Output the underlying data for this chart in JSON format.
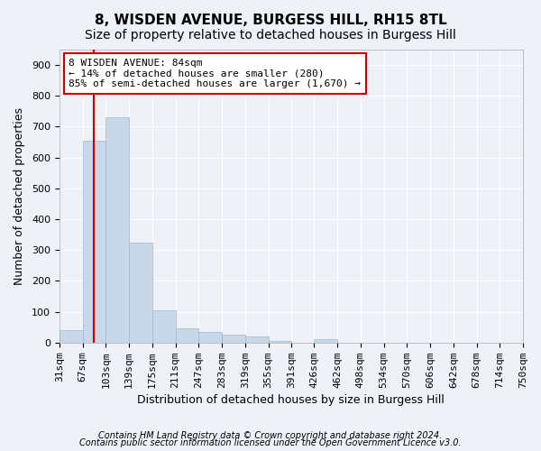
{
  "title": "8, WISDEN AVENUE, BURGESS HILL, RH15 8TL",
  "subtitle": "Size of property relative to detached houses in Burgess Hill",
  "xlabel": "Distribution of detached houses by size in Burgess Hill",
  "ylabel": "Number of detached properties",
  "footnote1": "Contains HM Land Registry data © Crown copyright and database right 2024.",
  "footnote2": "Contains public sector information licensed under the Open Government Licence v3.0.",
  "annotation_title": "8 WISDEN AVENUE: 84sqm",
  "annotation_line1": "← 14% of detached houses are smaller (280)",
  "annotation_line2": "85% of semi-detached houses are larger (1,670) →",
  "property_size": 84,
  "bar_edges": [
    31,
    67,
    103,
    139,
    175,
    211,
    247,
    283,
    319,
    355,
    391,
    426,
    462,
    498,
    534,
    570,
    606,
    642,
    678,
    714,
    750
  ],
  "bar_heights": [
    40,
    655,
    730,
    325,
    105,
    45,
    35,
    25,
    20,
    5,
    0,
    10,
    0,
    0,
    0,
    0,
    0,
    0,
    0,
    0
  ],
  "bar_color": "#c8d8e8",
  "bar_edge_color": "#a0b8cc",
  "vline_color": "#cc0000",
  "vline_x": 84,
  "ylim": [
    0,
    950
  ],
  "yticks": [
    0,
    100,
    200,
    300,
    400,
    500,
    600,
    700,
    800,
    900
  ],
  "bg_color": "#eef2f8",
  "plot_bg_color": "#eef2f8",
  "grid_color": "#ffffff",
  "annotation_box_color": "#ffffff",
  "annotation_border_color": "#cc0000",
  "title_fontsize": 11,
  "subtitle_fontsize": 10,
  "xlabel_fontsize": 9,
  "ylabel_fontsize": 9,
  "tick_fontsize": 8,
  "annotation_fontsize": 8,
  "footnote_fontsize": 7
}
